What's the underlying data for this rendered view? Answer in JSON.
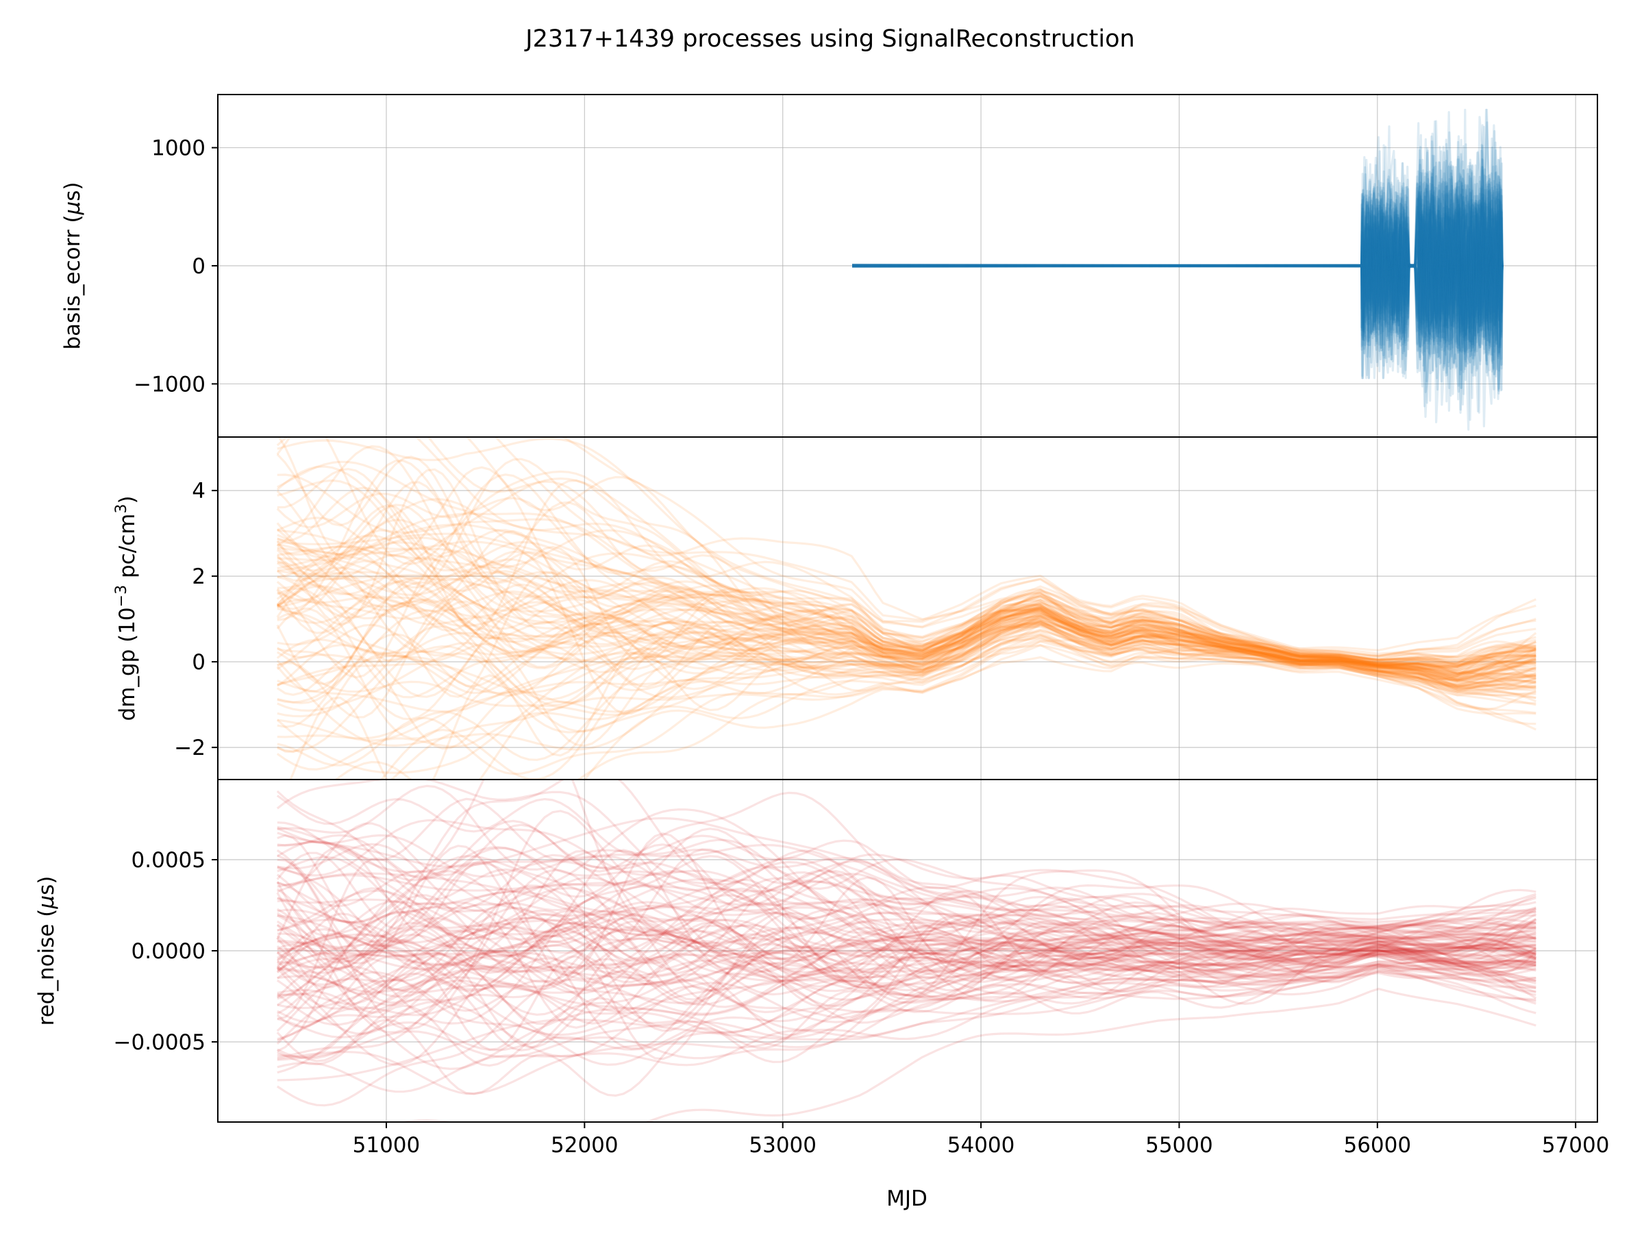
{
  "chart_data": {
    "type": "line",
    "title": "J2317+1439 processes using SignalReconstruction",
    "xlabel": "MJD",
    "xlim": [
      50150,
      57110
    ],
    "xticks": [
      51000,
      52000,
      53000,
      54000,
      55000,
      56000,
      57000
    ],
    "grid": true,
    "sharex": true,
    "panels": [
      {
        "name": "basis_ecorr",
        "ylabel_parts": [
          "basis_ecorr (",
          "μ",
          "s)"
        ],
        "color": "#1f77b4",
        "ylim": [
          -1450,
          1450
        ],
        "yticks": [
          1000,
          0,
          -1000
        ],
        "ytick_labels": [
          "1000",
          "0",
          "−1000"
        ],
        "flat_segment": {
          "x_start": 53350,
          "x_end": 55920,
          "value": 0
        },
        "burst_segments": [
          {
            "x_start": 55920,
            "x_end": 56150,
            "envelope": [
              -950,
              1180
            ]
          },
          {
            "x_start": 56200,
            "x_end": 56620,
            "envelope": [
              -1420,
              1320
            ]
          }
        ],
        "n_realizations": 100
      },
      {
        "name": "dm_gp",
        "ylabel_parts": [
          "dm_gp (10",
          "−3",
          " pc/cm",
          "3",
          ")"
        ],
        "color": "#ff7f0e",
        "ylim": [
          -2.75,
          5.25
        ],
        "yticks": [
          4,
          2,
          0,
          -2
        ],
        "ytick_labels": [
          "4",
          "2",
          "0",
          "−2"
        ],
        "x": [
          50450,
          50800,
          51400,
          52000,
          52500,
          53000,
          53350,
          53500,
          53700,
          53900,
          54100,
          54300,
          54500,
          54650,
          54800,
          55000,
          55200,
          55400,
          55600,
          55800,
          56000,
          56200,
          56400,
          56600,
          56800
        ],
        "mean": [
          1.5,
          1.4,
          1.2,
          1.0,
          0.8,
          0.65,
          0.5,
          0.2,
          0.05,
          0.4,
          0.9,
          1.15,
          0.75,
          0.55,
          0.75,
          0.6,
          0.4,
          0.25,
          0.05,
          0.05,
          -0.1,
          -0.15,
          -0.35,
          -0.2,
          -0.1
        ],
        "spread": [
          2.3,
          2.2,
          2.1,
          1.6,
          1.15,
          0.75,
          0.55,
          0.35,
          0.35,
          0.35,
          0.35,
          0.35,
          0.3,
          0.3,
          0.3,
          0.3,
          0.2,
          0.15,
          0.12,
          0.1,
          0.12,
          0.2,
          0.3,
          0.45,
          0.55
        ],
        "n_realizations": 100
      },
      {
        "name": "red_noise",
        "ylabel_parts": [
          "red_noise (",
          "μ",
          "s)"
        ],
        "color": "#d62728",
        "ylim": [
          -0.00094,
          0.00094
        ],
        "yticks": [
          0.0005,
          0.0,
          -0.0005
        ],
        "ytick_labels": [
          "0.0005",
          "0.0000",
          "−0.0005"
        ],
        "x": [
          50450,
          50800,
          51400,
          52000,
          52500,
          53000,
          53400,
          53700,
          54000,
          54300,
          54600,
          54900,
          55200,
          55500,
          55800,
          56000,
          56200,
          56400,
          56600,
          56800
        ],
        "mean": [
          0,
          0,
          0,
          0,
          0,
          0,
          0,
          0,
          0,
          0,
          0,
          0,
          -3e-05,
          -3e-05,
          -1e-05,
          2e-05,
          1e-05,
          0,
          0,
          0
        ],
        "spread": [
          0.00045,
          0.00045,
          0.00044,
          0.0004,
          0.00036,
          0.00033,
          0.0003,
          0.00025,
          0.00022,
          0.0002,
          0.00018,
          0.00016,
          0.00014,
          0.00012,
          0.0001,
          8e-05,
          0.0001,
          0.00012,
          0.00015,
          0.00018
        ],
        "n_realizations": 100
      }
    ]
  }
}
